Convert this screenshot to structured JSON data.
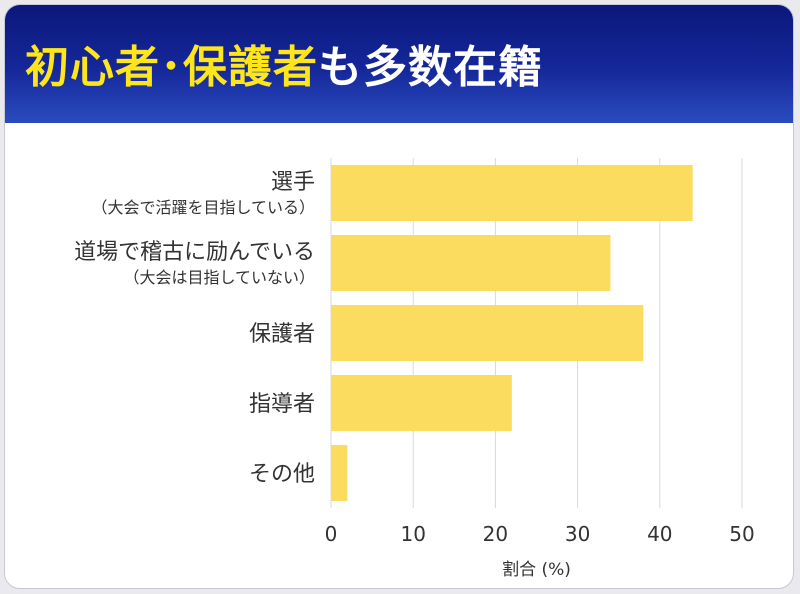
{
  "header": {
    "title_emphasis": "初心者･保護者",
    "title_rest": "も多数在籍"
  },
  "colors": {
    "accent_yellow": "#ffe61a",
    "bar": "#fcdc5e",
    "header_top": "#0b177a",
    "header_bottom": "#2a4cc0",
    "grid": "#d9d9d9"
  },
  "chart_data": {
    "type": "bar",
    "orientation": "horizontal",
    "categories": [
      {
        "lines": [
          "選手",
          "（大会で活躍を目指している）"
        ]
      },
      {
        "lines": [
          "道場で稽古に励んでいる",
          "（大会は目指していない）"
        ]
      },
      {
        "lines": [
          "保護者"
        ]
      },
      {
        "lines": [
          "指導者"
        ]
      },
      {
        "lines": [
          "その他"
        ]
      }
    ],
    "values": [
      44,
      34,
      38,
      22,
      2
    ],
    "xlabel": "割合 (%)",
    "xlim": [
      0,
      50
    ],
    "xticks": [
      0,
      10,
      20,
      30,
      40,
      50
    ],
    "grid": true
  }
}
